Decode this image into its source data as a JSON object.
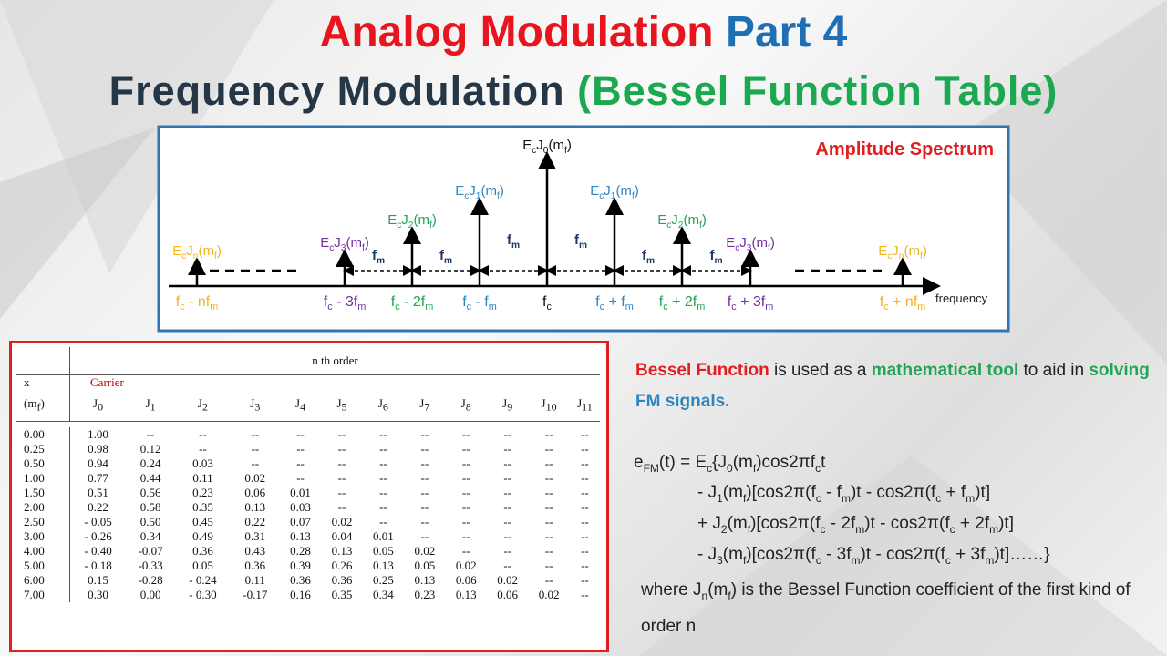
{
  "header": {
    "title": {
      "first": "Analog Modulation",
      "second": "Part 4"
    },
    "subtitle": {
      "first": "Frequency Modulation",
      "second": "(Bessel Function Table)"
    }
  },
  "diagram": {
    "title": "Amplitude Spectrum",
    "axis_label": "frequency",
    "lines": [
      {
        "amplitude": [
          "E",
          "c",
          "J",
          "n",
          "(m",
          "f",
          ")"
        ],
        "frequency": [
          "f",
          "c",
          " - nf",
          "m"
        ]
      },
      {
        "amplitude": [
          "E",
          "c",
          "J",
          "3",
          "(m",
          "f",
          ")"
        ],
        "frequency": [
          "f",
          "c",
          " - 3f",
          "m"
        ]
      },
      {
        "amplitude": [
          "E",
          "c",
          "J",
          "2",
          "(m",
          "f",
          ")"
        ],
        "frequency": [
          "f",
          "c",
          " - 2f",
          "m"
        ]
      },
      {
        "amplitude": [
          "E",
          "c",
          "J",
          "1",
          "(m",
          "f",
          ")"
        ],
        "frequency": [
          "f",
          "c",
          " - f",
          "m"
        ]
      },
      {
        "amplitude": [
          "E",
          "c",
          "J",
          "0",
          "(m",
          "f",
          ")"
        ],
        "frequency": [
          "f",
          "c"
        ]
      },
      {
        "amplitude": [
          "E",
          "c",
          "J",
          "1",
          "(m",
          "f",
          ")"
        ],
        "frequency": [
          "f",
          "c",
          " + f",
          "m"
        ]
      },
      {
        "amplitude": [
          "E",
          "c",
          "J",
          "2",
          "(m",
          "f",
          ")"
        ],
        "frequency": [
          "f",
          "c",
          " + 2f",
          "m"
        ]
      },
      {
        "amplitude": [
          "E",
          "c",
          "J",
          "3",
          "(m",
          "f",
          ")"
        ],
        "frequency": [
          "f",
          "c",
          " + 3f",
          "m"
        ]
      },
      {
        "amplitude": [
          "E",
          "c",
          "J",
          "n",
          "(m",
          "f",
          ")"
        ],
        "frequency": [
          "f",
          "c",
          " + nf",
          "m"
        ]
      }
    ],
    "spacing_labels": [
      [
        "f",
        "m"
      ],
      [
        "f",
        "m"
      ],
      [
        "f",
        "m"
      ],
      [
        "f",
        "m"
      ],
      [
        "f",
        "m"
      ],
      [
        "f",
        "m"
      ]
    ]
  },
  "table": {
    "group_header": "n th order",
    "x_header": "x",
    "m_header": [
      "(m",
      "f",
      ")"
    ],
    "carrier": "Carrier",
    "columns": [
      [
        "J",
        "0"
      ],
      [
        "J",
        "1"
      ],
      [
        "J",
        "2"
      ],
      [
        "J",
        "3"
      ],
      [
        "J",
        "4"
      ],
      [
        "J",
        "5"
      ],
      [
        "J",
        "6"
      ],
      [
        "J",
        "7"
      ],
      [
        "J",
        "8"
      ],
      [
        "J",
        "9"
      ],
      [
        "J",
        "10"
      ],
      [
        "J",
        "11"
      ]
    ],
    "rows": [
      [
        "0.00",
        "1.00",
        "--",
        "--",
        "--",
        "--",
        "--",
        "--",
        "--",
        "--",
        "--",
        "--",
        "--"
      ],
      [
        "0.25",
        "0.98",
        "0.12",
        "--",
        "--",
        "--",
        "--",
        "--",
        "--",
        "--",
        "--",
        "--",
        "--"
      ],
      [
        "0.50",
        "0.94",
        "0.24",
        "0.03",
        "--",
        "--",
        "--",
        "--",
        "--",
        "--",
        "--",
        "--",
        "--"
      ],
      [
        "1.00",
        "0.77",
        "0.44",
        "0.11",
        "0.02",
        "--",
        "--",
        "--",
        "--",
        "--",
        "--",
        "--",
        "--"
      ],
      [
        "1.50",
        "0.51",
        "0.56",
        "0.23",
        "0.06",
        "0.01",
        "--",
        "--",
        "--",
        "--",
        "--",
        "--",
        "--"
      ],
      [
        "2.00",
        "0.22",
        "0.58",
        "0.35",
        "0.13",
        "0.03",
        "--",
        "--",
        "--",
        "--",
        "--",
        "--",
        "--"
      ],
      [
        "2.50",
        "- 0.05",
        "0.50",
        "0.45",
        "0.22",
        "0.07",
        "0.02",
        "--",
        "--",
        "--",
        "--",
        "--",
        "--"
      ],
      [
        "3.00",
        "- 0.26",
        "0.34",
        "0.49",
        "0.31",
        "0.13",
        "0.04",
        "0.01",
        "--",
        "--",
        "--",
        "--",
        "--"
      ],
      [
        "4.00",
        "- 0.40",
        "-0.07",
        "0.36",
        "0.43",
        "0.28",
        "0.13",
        "0.05",
        "0.02",
        "--",
        "--",
        "--",
        "--"
      ],
      [
        "5.00",
        "- 0.18",
        "-0.33",
        "0.05",
        "0.36",
        "0.39",
        "0.26",
        "0.13",
        "0.05",
        "0.02",
        "--",
        "--",
        "--"
      ],
      [
        "6.00",
        "0.15",
        "-0.28",
        "- 0.24",
        "0.11",
        "0.36",
        "0.36",
        "0.25",
        "0.13",
        "0.06",
        "0.02",
        "--",
        "--"
      ],
      [
        "7.00",
        "0.30",
        "0.00",
        "- 0.30",
        "-0.17",
        "0.16",
        "0.35",
        "0.34",
        "0.23",
        "0.13",
        "0.06",
        "0.02",
        "--"
      ]
    ]
  },
  "notes": {
    "intro": [
      "Bessel Function",
      " is used as a ",
      "mathematical tool",
      " to aid in ",
      "solving",
      " ",
      "FM signals."
    ],
    "equation": [
      [
        "e",
        "FM",
        "(t) = E",
        "c",
        "{J",
        "0",
        "(m",
        "f",
        ")cos2πf",
        "c",
        "t"
      ],
      [
        "- J",
        "1",
        "(m",
        "f",
        ")[cos2π(f",
        "c",
        " - f",
        "m",
        ")t - cos2π(f",
        "c",
        " + f",
        "m",
        ")t]"
      ],
      [
        "+ J",
        "2",
        "(m",
        "f",
        ")[cos2π(f",
        "c",
        " - 2f",
        "m",
        ")t - cos2π(f",
        "c",
        " + 2f",
        "m",
        ")t]"
      ],
      [
        "- J",
        "3",
        "(m",
        "f",
        ")[cos2π(f",
        "c",
        " - 3f",
        "m",
        ")t - cos2π(f",
        "c",
        " + 3f",
        "m",
        ")t]……}"
      ]
    ],
    "where": [
      "where J",
      "n",
      "(m",
      "f",
      ") is the Bessel Function coefficient of the first kind of order n"
    ]
  }
}
